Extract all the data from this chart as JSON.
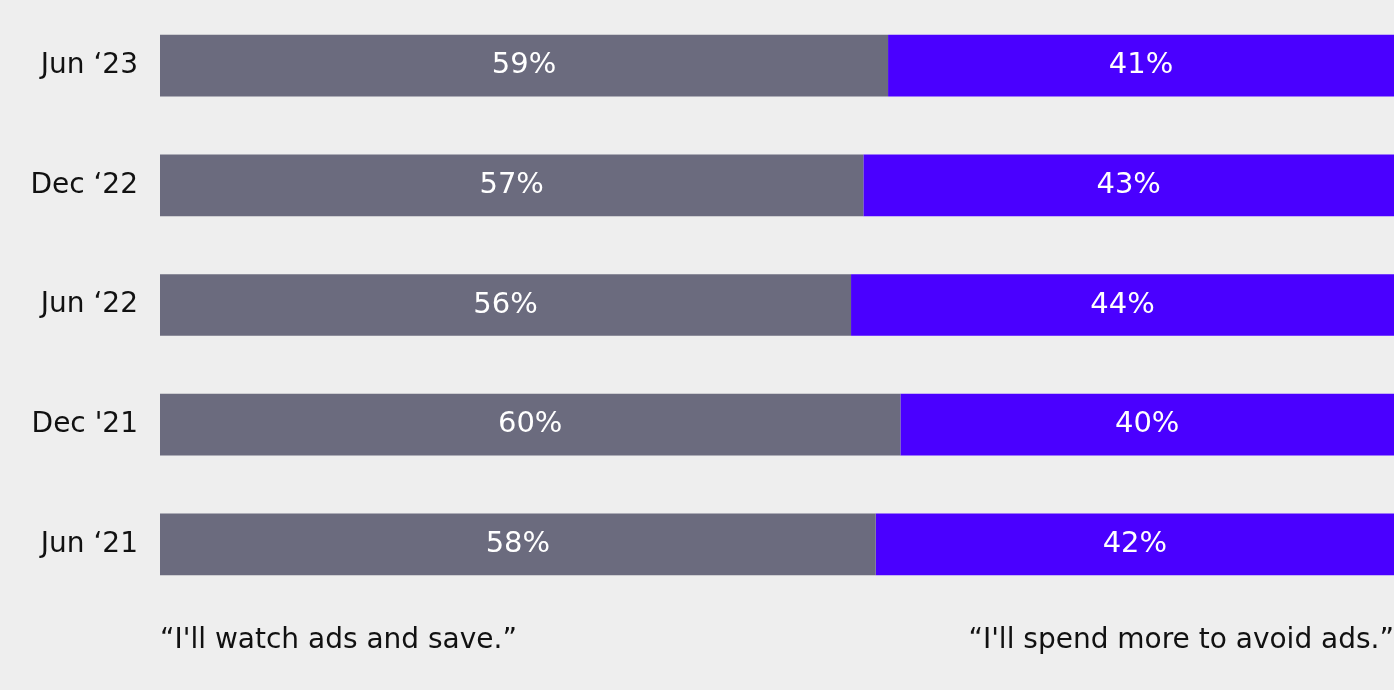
{
  "chart_data": {
    "type": "bar",
    "orientation": "horizontal",
    "stacked": true,
    "categories": [
      "Jun ‘23",
      "Dec ‘22",
      "Jun ‘22",
      "Dec '21",
      "Jun ‘21"
    ],
    "series": [
      {
        "name": "“I'll watch ads and save.”",
        "color": "#6b6b7e",
        "values": [
          59,
          57,
          56,
          60,
          58
        ],
        "value_labels": [
          "59%",
          "57%",
          "56%",
          "60%",
          "58%"
        ]
      },
      {
        "name": "“I'll spend more to avoid ads.”",
        "color": "#4a00ff",
        "values": [
          41,
          43,
          44,
          40,
          42
        ],
        "value_labels": [
          "41%",
          "43%",
          "44%",
          "40%",
          "42%"
        ]
      }
    ],
    "legend": "bottom",
    "tick_labels": "y"
  }
}
